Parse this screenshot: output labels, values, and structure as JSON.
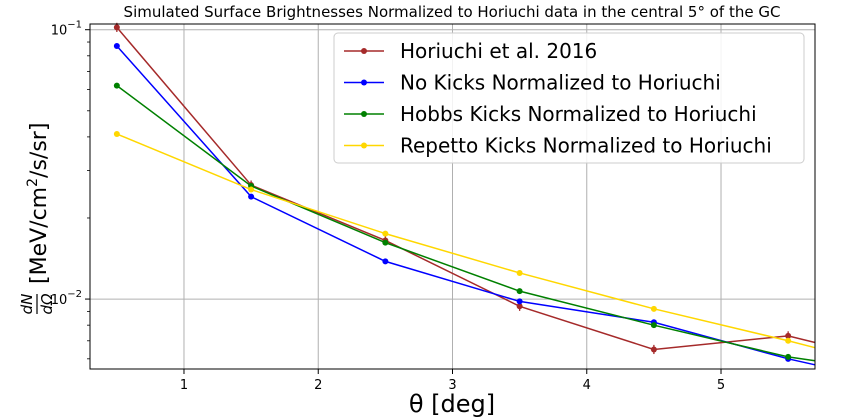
{
  "chart_data": {
    "type": "line",
    "title": "Simulated Surface Brightnesses Normalized to Horiuchi data in the central 5° of the GC",
    "xlabel": "θ [deg]",
    "ylabel_parts": {
      "frac_num": "dN",
      "frac_den": "dΩ",
      "bracket_open": "[",
      "unit_a": "MeV/cm",
      "unit_sup": "2",
      "unit_b": "/s/sr]"
    },
    "xlim": [
      0.3,
      5.7
    ],
    "ylim": [
      0.0055,
      0.105
    ],
    "yscale": "log",
    "grid": true,
    "legend_position": "top-right",
    "x_ticks": [
      1,
      2,
      3,
      4,
      5
    ],
    "y_ticks": [
      {
        "value": 0.1,
        "base": "10",
        "exp": "−1"
      },
      {
        "value": 0.01,
        "base": "10",
        "exp": "−2"
      }
    ],
    "series": [
      {
        "name": "Horiuchi et al. 2016",
        "color": "#a52a2a",
        "x": [
          0.5,
          1.5,
          2.5,
          3.5,
          4.5,
          5.5,
          5.7
        ],
        "y": [
          0.102,
          0.0265,
          0.0165,
          0.0094,
          0.0065,
          0.0073,
          0.0069
        ],
        "error_bars": true
      },
      {
        "name": "No Kicks Normalized to Horiuchi",
        "color": "#0000ff",
        "x": [
          0.5,
          1.5,
          2.5,
          3.5,
          4.5,
          5.5,
          5.7
        ],
        "y": [
          0.087,
          0.024,
          0.0138,
          0.0098,
          0.0082,
          0.006,
          0.0057
        ]
      },
      {
        "name": "Hobbs Kicks Normalized to Horiuchi",
        "color": "#008000",
        "x": [
          0.5,
          1.5,
          2.5,
          3.5,
          4.5,
          5.5,
          5.7
        ],
        "y": [
          0.062,
          0.0263,
          0.0162,
          0.0107,
          0.008,
          0.0061,
          0.0059
        ]
      },
      {
        "name": "Repetto Kicks Normalized to Horiuchi",
        "color": "#ffd700",
        "x": [
          0.5,
          1.5,
          2.5,
          3.5,
          4.5,
          5.5,
          5.7
        ],
        "y": [
          0.041,
          0.0255,
          0.0175,
          0.0125,
          0.0092,
          0.007,
          0.0066
        ]
      }
    ]
  }
}
